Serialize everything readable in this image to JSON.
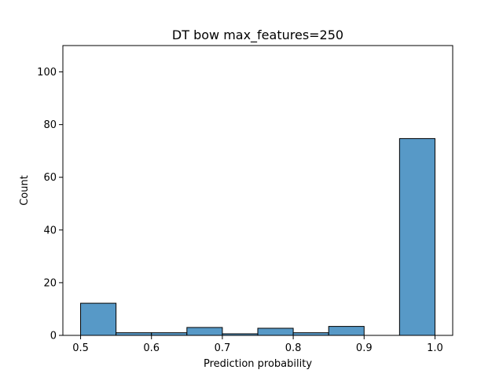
{
  "chart_data": {
    "type": "bar",
    "title": "DT bow max_features=250",
    "xlabel": "Prediction probability",
    "ylabel": "Count",
    "xlim": [
      0.475,
      1.025
    ],
    "ylim": [
      0,
      110
    ],
    "xticks": [
      0.5,
      0.6,
      0.7,
      0.8,
      0.9,
      1.0
    ],
    "xtick_labels": [
      "0.5",
      "0.6",
      "0.7",
      "0.8",
      "0.9",
      "1.0"
    ],
    "yticks": [
      0,
      20,
      40,
      60,
      80,
      100
    ],
    "ytick_labels": [
      "0",
      "20",
      "40",
      "60",
      "80",
      "100"
    ],
    "bins": [
      {
        "x0": 0.5,
        "x1": 0.55,
        "count": 12.2
      },
      {
        "x0": 0.55,
        "x1": 0.6,
        "count": 1.0
      },
      {
        "x0": 0.6,
        "x1": 0.65,
        "count": 1.0
      },
      {
        "x0": 0.65,
        "x1": 0.7,
        "count": 3.0
      },
      {
        "x0": 0.7,
        "x1": 0.75,
        "count": 0.6
      },
      {
        "x0": 0.75,
        "x1": 0.8,
        "count": 2.7
      },
      {
        "x0": 0.8,
        "x1": 0.85,
        "count": 1.0
      },
      {
        "x0": 0.85,
        "x1": 0.9,
        "count": 3.4
      },
      {
        "x0": 0.9,
        "x1": 0.95,
        "count": 0.0
      },
      {
        "x0": 0.95,
        "x1": 1.0,
        "count": 74.7
      }
    ],
    "bar_color": "#5799c7",
    "grid": false
  }
}
